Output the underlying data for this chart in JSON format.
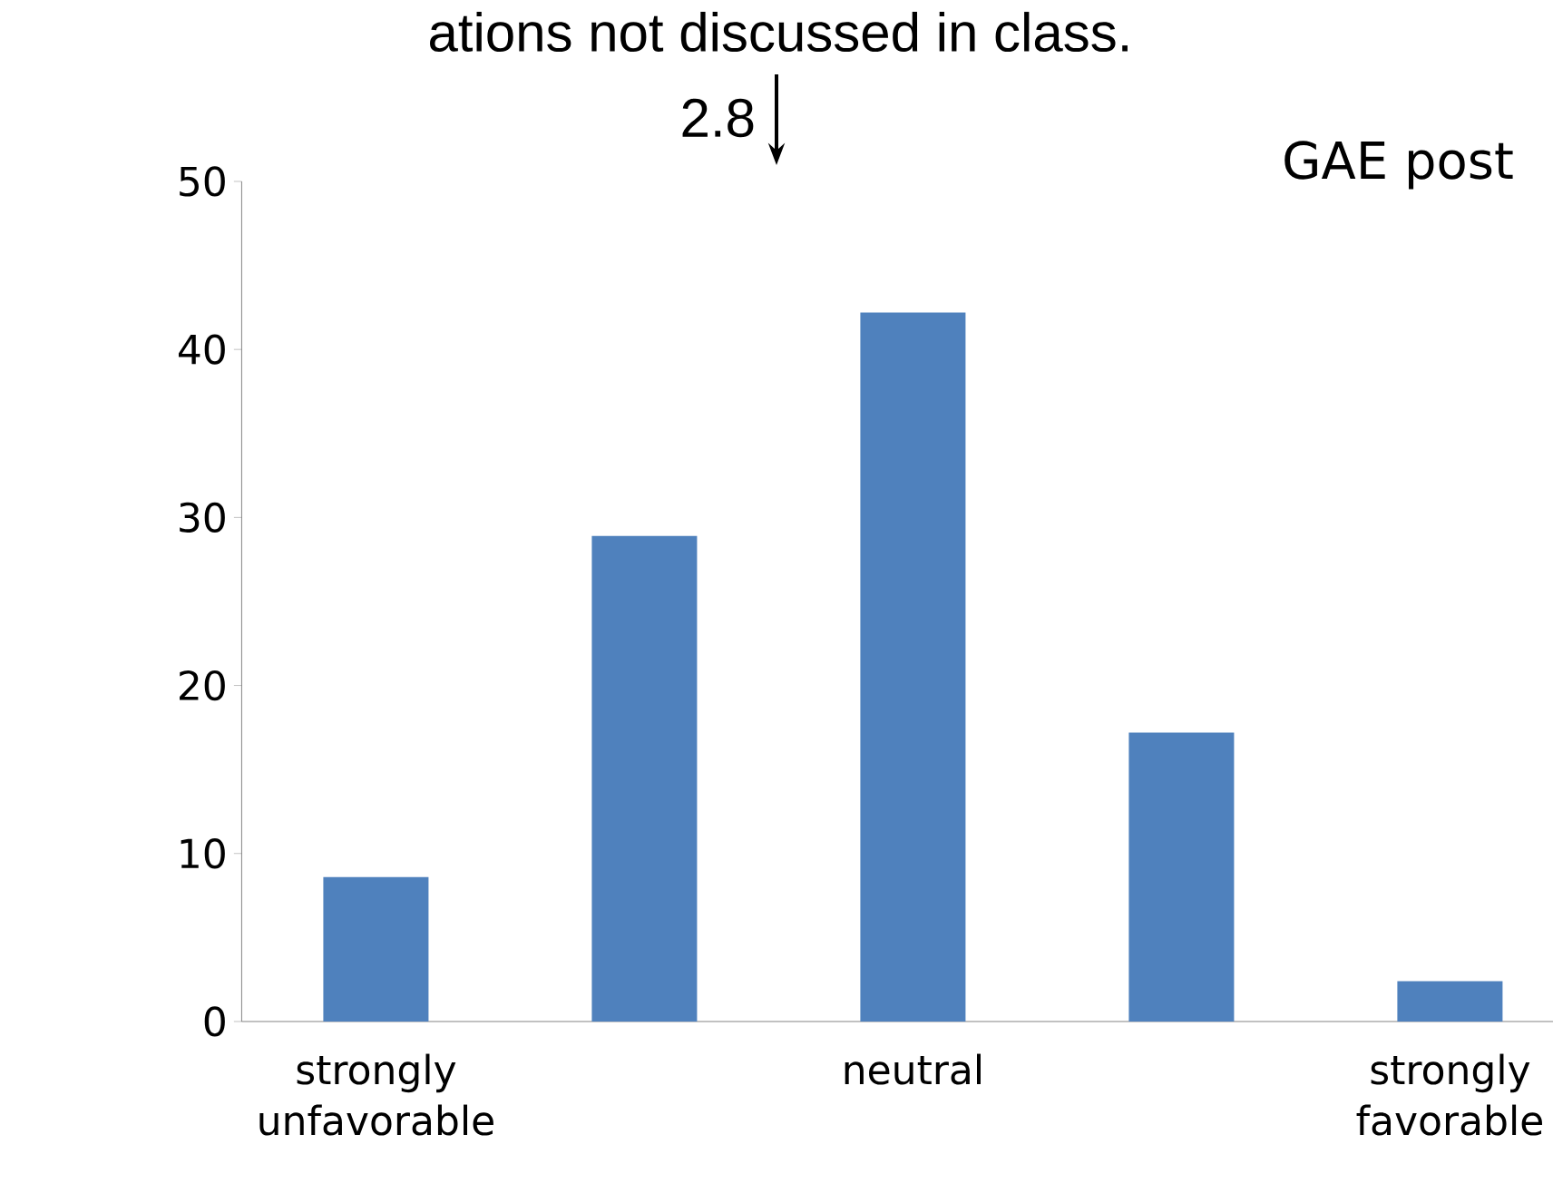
{
  "chart_data": {
    "type": "bar",
    "title": "ations not discussed in class.",
    "categories": [
      "strongly unfavorable",
      null,
      "neutral",
      null,
      "strongly favorable"
    ],
    "values": [
      8.6,
      28.9,
      42.2,
      17.2,
      2.4
    ],
    "color": "#4f81bd",
    "ylim": [
      0,
      50
    ],
    "yticks": [
      0,
      10,
      20,
      30,
      40,
      50
    ],
    "annotations": [
      "2.8",
      "GAE post"
    ]
  }
}
